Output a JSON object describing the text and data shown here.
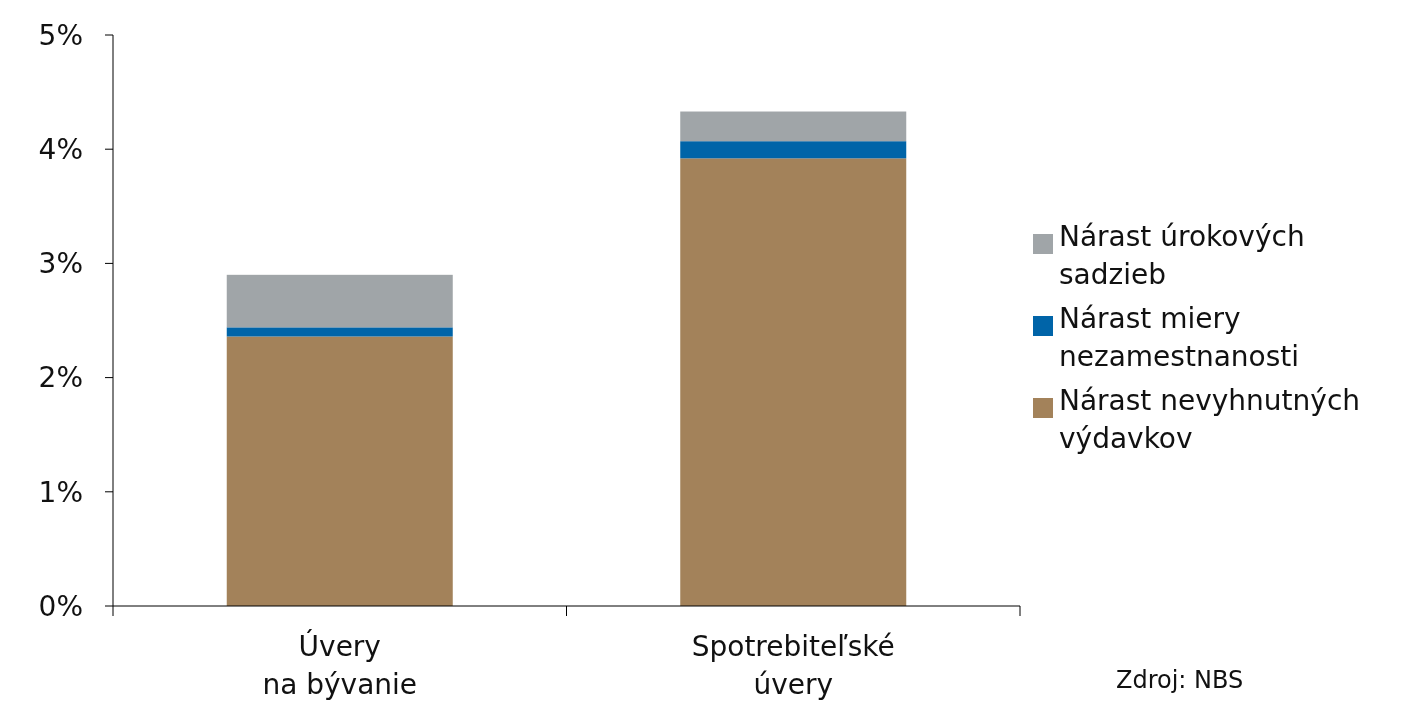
{
  "chart_data": {
    "type": "bar",
    "stacked": true,
    "categories": [
      "Úvery\nna bývanie",
      "Spotrebiteľské\núvery"
    ],
    "series": [
      {
        "name": "Nárast nevyhnutných výdavkov",
        "color": "#a3825a",
        "values": [
          2.36,
          3.92
        ]
      },
      {
        "name": "Nárast miery nezamestnanosti",
        "color": "#0064a8",
        "values": [
          0.08,
          0.15
        ]
      },
      {
        "name": "Nárast úrokových sadzieb",
        "color": "#a0a5a8",
        "values": [
          0.46,
          0.26
        ]
      }
    ],
    "ylim": [
      0,
      5
    ],
    "yticks": [
      {
        "value": 0,
        "label": "0%"
      },
      {
        "value": 1,
        "label": "1%"
      },
      {
        "value": 2,
        "label": "2%"
      },
      {
        "value": 3,
        "label": "3%"
      },
      {
        "value": 4,
        "label": "4%"
      },
      {
        "value": 5,
        "label": "5%"
      }
    ],
    "legend": "right",
    "annotations": [
      "Zdroj: NBS"
    ]
  }
}
